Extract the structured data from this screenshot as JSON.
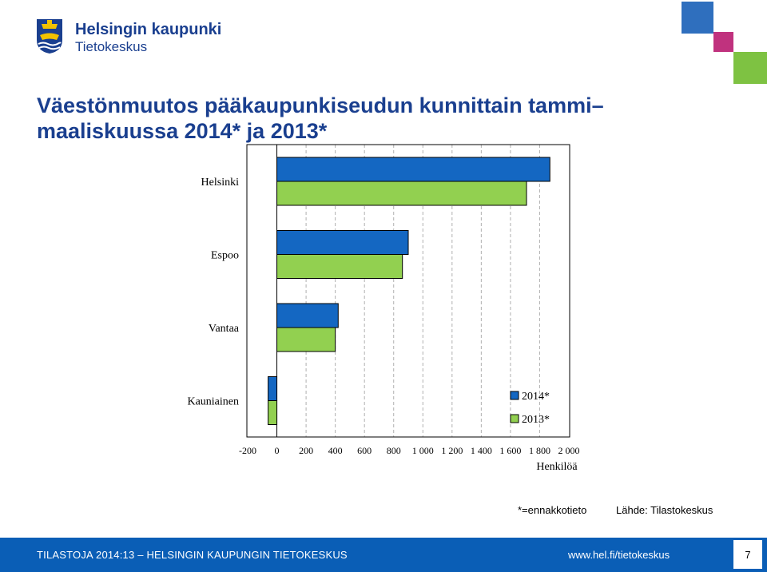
{
  "logo": {
    "line1": "Helsingin kaupunki",
    "line2": "Tietokeskus",
    "icon": "helsinki-coat-of-arms-icon"
  },
  "decor_colors": {
    "blue": "#2f6fbe",
    "magenta": "#c0327e",
    "green": "#7ec242"
  },
  "title": "Väestönmuutos pääkaupunkiseudun kunnittain tammi–maaliskuussa 2014* ja 2013*",
  "chart_data": {
    "type": "bar",
    "orientation": "horizontal",
    "categories": [
      "Helsinki",
      "Espoo",
      "Vantaa",
      "Kauniainen"
    ],
    "series": [
      {
        "name": "2014*",
        "color": "#1467c2",
        "values": [
          1870,
          900,
          420,
          -60
        ]
      },
      {
        "name": "2013*",
        "color": "#92d050",
        "values": [
          1710,
          860,
          400,
          -60
        ]
      }
    ],
    "xlabel": "Henkilöä",
    "xlim": [
      -200,
      2000
    ],
    "xticks": [
      -200,
      0,
      200,
      400,
      600,
      800,
      1000,
      1200,
      1400,
      1600,
      1800,
      2000
    ],
    "xtick_labels": [
      "-200",
      "0",
      "200",
      "400",
      "600",
      "800",
      "1 000",
      "1 200",
      "1 400",
      "1 600",
      "1 800",
      "2 000"
    ],
    "grid": true,
    "legend": "inside-bottom-right"
  },
  "footnote": "*=ennakkotieto",
  "source": "Lähde: Tilastokeskus",
  "footer": {
    "left": "TILASTOJA 2014:13 – HELSINGIN KAUPUNGIN TIETOKESKUS",
    "url": "www.hel.fi/tietokeskus",
    "page": "7"
  }
}
